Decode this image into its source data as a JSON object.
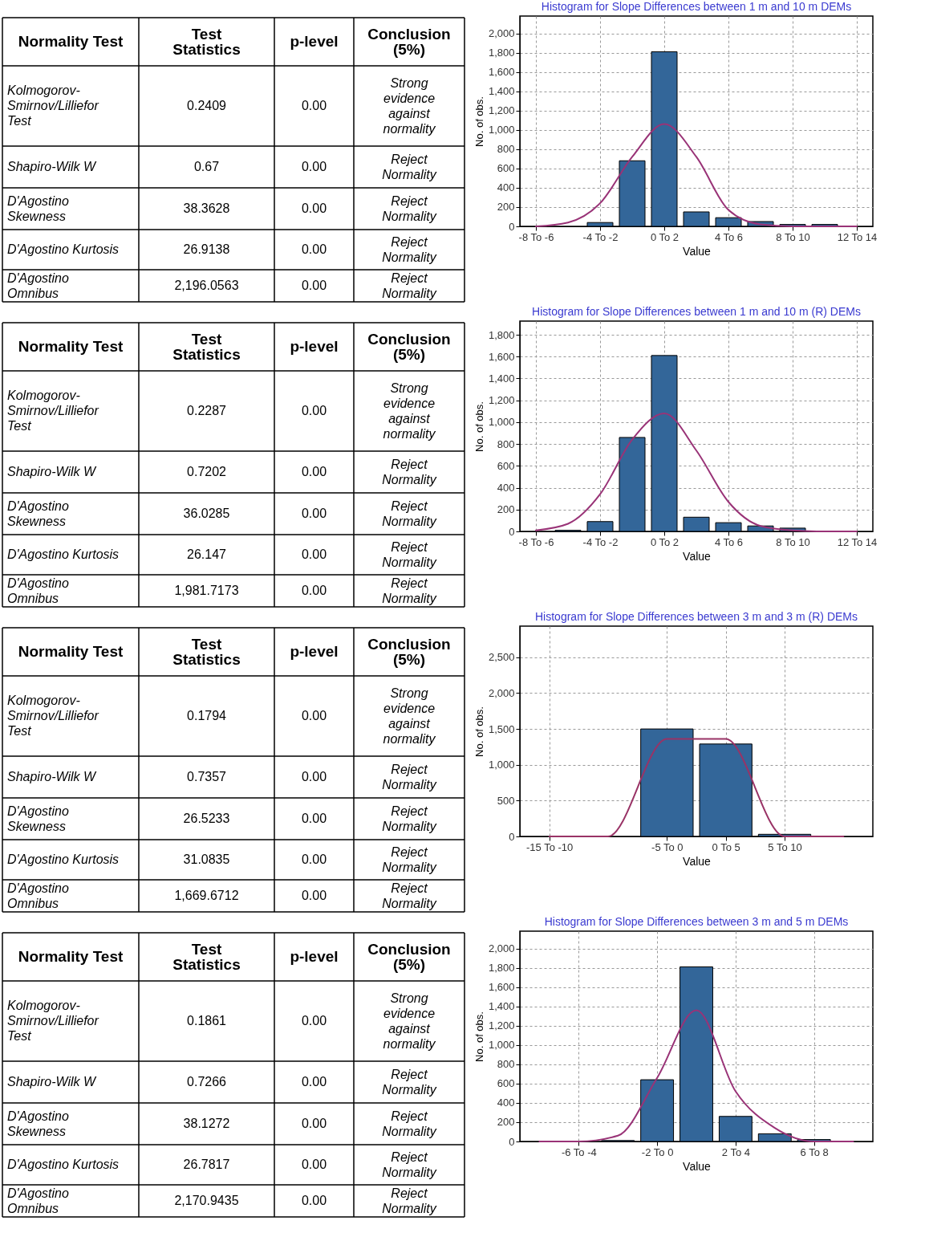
{
  "chart_data": [
    {
      "type": "other",
      "annotations": [
        "Normality Test",
        "Test\nStatistics",
        "p-level",
        "Conclusion\n(5%)",
        "Kolmogorov-\nSmirnov/Lilliefor\nTest",
        "0.2409",
        "0.00",
        "Strong\nevidence\nagainst\nnormality",
        "Shapiro-Wilk W",
        "0.67",
        "0.00",
        "Reject\nNormality",
        "D'Agostino\nSkewness",
        "38.3628",
        "0.00",
        "Reject\nNormality",
        "D'Agostino Kurtosis",
        "26.9138",
        "0.00",
        "Reject\nNormality",
        "D'Agostino\nOmnibus",
        "2,196.0563",
        "0.00",
        "Reject\nNormality"
      ]
    },
    {
      "type": "bar",
      "title": "Histogram for Slope Differences between 1 m and 10 m DEMs",
      "xlabel": "Value",
      "ylabel": "No. of obs.",
      "grid": true,
      "categories": [
        "-8 To -6",
        null,
        "-4 To -2",
        null,
        "0 To 2",
        null,
        "4 To 6",
        null,
        "8 To 10",
        null,
        "12 To 14"
      ],
      "series": [
        {
          "color": "#336699",
          "values": [
            0,
            0,
            40,
            680,
            1810,
            150,
            90,
            50,
            20,
            20,
            0
          ]
        },
        {
          "type": "line",
          "color": "#993377",
          "values": [
            0,
            40,
            240,
            720,
            1060,
            720,
            170,
            20,
            0,
            0,
            0
          ]
        }
      ],
      "ylim": [
        0,
        2180
      ],
      "yticks": [
        0,
        200,
        400,
        600,
        800,
        {
          "value": 1000,
          "label": "1,000"
        },
        {
          "value": 1200,
          "label": "1,200"
        },
        {
          "value": 1400,
          "label": "1,400"
        },
        {
          "value": 1600,
          "label": "1,600"
        },
        {
          "value": 1800,
          "label": "1,800"
        },
        {
          "value": 2000,
          "label": "2,000"
        }
      ]
    },
    {
      "type": "other",
      "annotations": [
        "Normality Test",
        "Test\nStatistics",
        "p-level",
        "Conclusion\n(5%)",
        "Kolmogorov-\nSmirnov/Lilliefor\nTest",
        "0.2287",
        "0.00",
        "Strong\nevidence\nagainst\nnormality",
        "Shapiro-Wilk W",
        "0.7202",
        "0.00",
        "Reject\nNormality",
        "D'Agostino\nSkewness",
        "36.0285",
        "0.00",
        "Reject\nNormality",
        "D'Agostino Kurtosis",
        "26.147",
        "0.00",
        "Reject\nNormality",
        "D'Agostino\nOmnibus",
        "1,981.7173",
        "0.00",
        "Reject\nNormality"
      ]
    },
    {
      "type": "bar",
      "title": "Histogram for Slope Differences between 1 m and 10 m (R) DEMs",
      "xlabel": "Value",
      "ylabel": "No. of obs.",
      "grid": true,
      "categories": [
        "-8 To -6",
        null,
        "-4 To -2",
        null,
        "0 To 2",
        null,
        "4 To 6",
        null,
        "8 To 10",
        null,
        "12 To 14"
      ],
      "series": [
        {
          "color": "#336699",
          "values": [
            0,
            10,
            90,
            860,
            1610,
            130,
            80,
            50,
            30,
            0,
            0
          ]
        },
        {
          "type": "line",
          "color": "#993377",
          "values": [
            10,
            70,
            340,
            840,
            1080,
            740,
            270,
            50,
            10,
            0,
            0
          ]
        }
      ],
      "ylim": [
        0,
        1925
      ],
      "yticks": [
        0,
        200,
        400,
        600,
        800,
        {
          "value": 1000,
          "label": "1,000"
        },
        {
          "value": 1200,
          "label": "1,200"
        },
        {
          "value": 1400,
          "label": "1,400"
        },
        {
          "value": 1600,
          "label": "1,600"
        },
        {
          "value": 1800,
          "label": "1,800"
        }
      ]
    },
    {
      "type": "other",
      "annotations": [
        "Normality Test",
        "Test\nStatistics",
        "p-level",
        "Conclusion\n(5%)",
        "Kolmogorov-\nSmirnov/Lilliefor\nTest",
        "0.1794",
        "0.00",
        "Strong\nevidence\nagainst\nnormality",
        "Shapiro-Wilk W",
        "0.7357",
        "0.00",
        "Reject\nNormality",
        "D'Agostino\nSkewness",
        "26.5233",
        "0.00",
        "Reject\nNormality",
        "D'Agostino Kurtosis",
        "31.0835",
        "0.00",
        "Reject\nNormality",
        "D'Agostino\nOmnibus",
        "1,669.6712",
        "0.00",
        "Reject\nNormality"
      ]
    },
    {
      "type": "bar",
      "title": "Histogram for Slope Differences between 3 m and 3 m (R) DEMs",
      "xlabel": "Value",
      "ylabel": "No. of obs.",
      "grid": true,
      "categories": [
        "-15 To -10",
        null,
        "-5 To 0",
        "0 To 5",
        "5 To 10",
        null
      ],
      "series": [
        {
          "color": "#336699",
          "values": [
            0,
            0,
            1500,
            1290,
            30,
            0
          ]
        },
        {
          "type": "line",
          "color": "#993366",
          "values": [
            0,
            0,
            1360,
            1360,
            0,
            0
          ]
        }
      ],
      "ylim": [
        0,
        2935
      ],
      "yticks": [
        0,
        500,
        {
          "value": 1000,
          "label": "1,000"
        },
        {
          "value": 1500,
          "label": "1,500"
        },
        {
          "value": 2000,
          "label": "2,000"
        },
        {
          "value": 2500,
          "label": "2,500"
        }
      ]
    },
    {
      "type": "other",
      "annotations": [
        "Normality Test",
        "Test\nStatistics",
        "p-level",
        "Conclusion\n(5%)",
        "Kolmogorov-\nSmirnov/Lilliefor\nTest",
        "0.1861",
        "0.00",
        "Strong\nevidence\nagainst\nnormality",
        "Shapiro-Wilk W",
        "0.7266",
        "0.00",
        "Reject\nNormality",
        "D'Agostino\nSkewness",
        "38.1272",
        "0.00",
        "Reject\nNormality",
        "D'Agostino Kurtosis",
        "26.7817",
        "0.00",
        "Reject\nNormality",
        "D'Agostino\nOmnibus",
        "2,170.9435",
        "0.00",
        "Reject\nNormality"
      ]
    },
    {
      "type": "bar",
      "title": "Histogram for Slope Differences between 3 m and 5 m DEMs",
      "xlabel": "Value",
      "ylabel": "No. of obs.",
      "grid": true,
      "categories": [
        null,
        "-6 To -4",
        null,
        "-2 To 0",
        null,
        "2 To 4",
        null,
        "6 To 8",
        null
      ],
      "series": [
        {
          "color": "#336699",
          "values": [
            0,
            0,
            10,
            640,
            1810,
            260,
            80,
            20,
            0
          ]
        },
        {
          "type": "line",
          "color": "#993377",
          "values": [
            0,
            0,
            60,
            660,
            1360,
            520,
            140,
            0,
            0
          ]
        }
      ],
      "ylim": [
        0,
        2180
      ],
      "yticks": [
        0,
        200,
        400,
        600,
        800,
        {
          "value": 1000,
          "label": "1,000"
        },
        {
          "value": 1200,
          "label": "1,200"
        },
        {
          "value": 1400,
          "label": "1,400"
        },
        {
          "value": 1600,
          "label": "1,600"
        },
        {
          "value": 1800,
          "label": "1,800"
        },
        {
          "value": 2000,
          "label": "2,000"
        }
      ]
    }
  ]
}
